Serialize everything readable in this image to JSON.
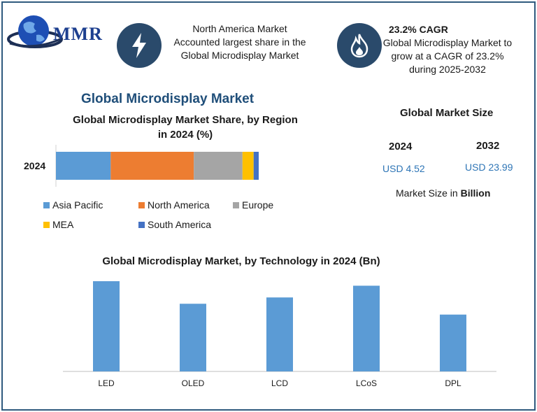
{
  "logo": {
    "text": "MMR"
  },
  "info_left": {
    "icon": "lightning-bolt-icon",
    "lines": [
      "North America Market",
      "Accounted largest share in the",
      "Global Microdisplay Market"
    ]
  },
  "info_right": {
    "icon": "flame-icon",
    "title": "23.2% CAGR",
    "lines": [
      "Global Microdisplay Market to",
      "grow at a CAGR of 23.2%",
      "during 2025-2032"
    ]
  },
  "main_title": "Global Microdisplay Market",
  "market_size": {
    "title": "Global Market Size",
    "year1": "2024",
    "year2": "2032",
    "value1": "USD 4.52",
    "value2": "USD 23.99",
    "unit_prefix": "Market Size in",
    "unit_bold": "Billion"
  },
  "colors": {
    "asia_pacific": "#5b9bd5",
    "north_america": "#ed7d31",
    "europe": "#a5a5a5",
    "mea": "#ffc000",
    "south_america": "#4472c4",
    "technology_bar": "#5b9bd5",
    "icon_bg": "#2a4a6b"
  },
  "chart_data": [
    {
      "type": "bar",
      "orientation": "horizontal-stacked",
      "title_line1": "Global Microdisplay Market Share, by Region",
      "title_line2": "in 2024 (%)",
      "categories": [
        "2024"
      ],
      "series": [
        {
          "name": "Asia Pacific",
          "values": [
            27
          ]
        },
        {
          "name": "North America",
          "values": [
            41
          ]
        },
        {
          "name": "Europe",
          "values": [
            24
          ]
        },
        {
          "name": "MEA",
          "values": [
            5.5
          ]
        },
        {
          "name": "South America",
          "values": [
            2.5
          ]
        }
      ],
      "xlim": [
        0,
        100
      ],
      "legend": "bottom"
    },
    {
      "type": "bar",
      "title": "Global Microdisplay Market, by Technology in 2024 (Bn)",
      "categories": [
        "LED",
        "OLED",
        "LCD",
        "LCoS",
        "DPL"
      ],
      "values": [
        1.0,
        0.75,
        0.82,
        0.95,
        0.63
      ],
      "ylim": [
        0,
        1.0
      ],
      "grid": false
    }
  ]
}
